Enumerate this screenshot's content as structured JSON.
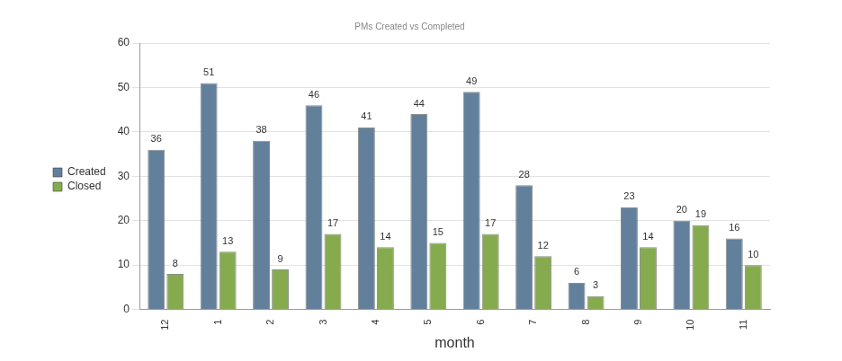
{
  "chart_data": {
    "type": "bar",
    "title": "PMs Created vs Completed",
    "x_label": "month",
    "categories": [
      "12",
      "1",
      "2",
      "3",
      "4",
      "5",
      "6",
      "7",
      "8",
      "9",
      "10",
      "11"
    ],
    "series": [
      {
        "name": "Created",
        "color": "#62809c",
        "values": [
          36,
          51,
          38,
          46,
          41,
          44,
          49,
          28,
          6,
          23,
          20,
          16
        ]
      },
      {
        "name": "Closed",
        "color": "#86ab4f",
        "values": [
          8,
          13,
          9,
          17,
          14,
          15,
          17,
          12,
          3,
          14,
          19,
          10
        ]
      }
    ],
    "ylim": [
      0,
      60
    ],
    "yticks": [
      0,
      10,
      20,
      30,
      40,
      50,
      60
    ],
    "grid": true,
    "legend": "left",
    "data_labels": true
  }
}
